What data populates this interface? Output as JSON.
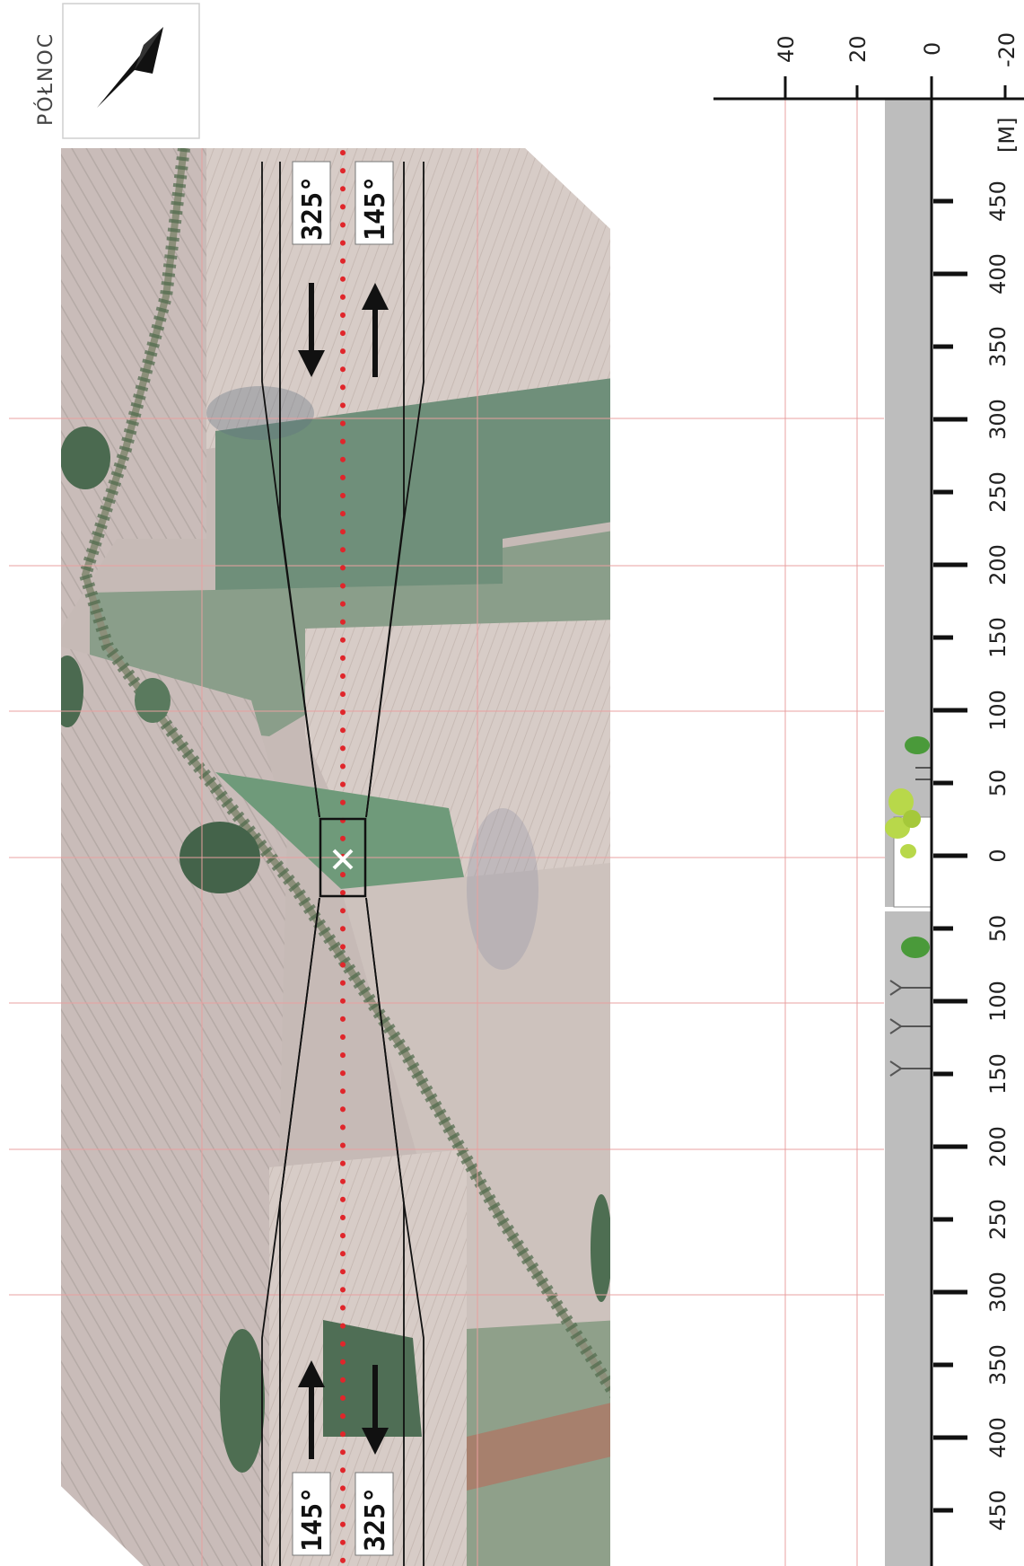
{
  "compass": {
    "label": "PÓŁNOC",
    "icon": "north-arrow-icon"
  },
  "headings": {
    "top_left": "325°",
    "top_right": "145°",
    "bottom_left": "145°",
    "bottom_right": "325°"
  },
  "runway_symbol": "runway-threshold-x-icon",
  "elevation_axis": {
    "unit_label": "[M]",
    "ticks": [
      "40",
      "20",
      "0",
      "-20"
    ]
  },
  "distance_axis": {
    "labels": [
      "450",
      "400",
      "350",
      "300",
      "250",
      "200",
      "150",
      "100",
      "50",
      "0",
      "50",
      "100",
      "150",
      "200",
      "250",
      "300",
      "350",
      "400",
      "450"
    ]
  },
  "colors": {
    "grid": "#e8a0a0",
    "centerline": "#e0262b",
    "profile": "#bdbdbd",
    "tree": "#4a9a3a",
    "tree_light": "#b8d84a"
  }
}
